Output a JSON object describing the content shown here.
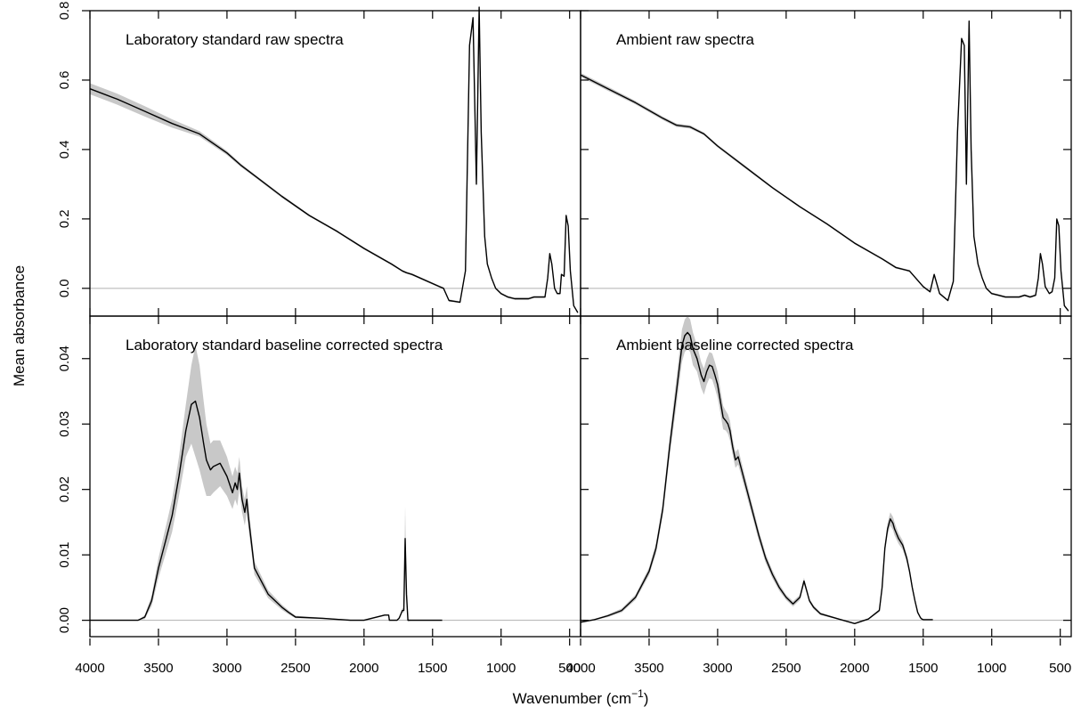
{
  "figure": {
    "xlabel": "Wavenumber (cm",
    "xlabel_sup": "−1",
    "xlabel_end": ")",
    "ylabel": "Mean absorbance"
  },
  "chart_data": [
    {
      "type": "line",
      "title": "Laboratory standard raw spectra",
      "xlim": [
        4000,
        420
      ],
      "ylim": [
        -0.08,
        0.8
      ],
      "xticks": [
        4000,
        3500,
        3000,
        2500,
        2000,
        1500,
        1000,
        500
      ],
      "yticks": [
        0.0,
        0.2,
        0.4,
        0.6,
        0.8
      ],
      "ytick_labels": [
        "0.0",
        "0.2",
        "0.4",
        "0.6",
        "0.8"
      ],
      "zero_line": true,
      "band_color": "#c8c8c8",
      "line_color": "#000000",
      "series": [
        {
          "x": [
            4000,
            3800,
            3600,
            3400,
            3300,
            3200,
            3000,
            2900,
            2800,
            2600,
            2400,
            2200,
            2000,
            1800,
            1720,
            1690,
            1650,
            1450,
            1420,
            1380,
            1300,
            1260,
            1230,
            1205,
            1180,
            1160,
            1145,
            1120,
            1100,
            1070,
            1040,
            1000,
            950,
            900,
            800,
            760,
            720,
            680,
            660,
            645,
            630,
            610,
            590,
            570,
            560,
            540,
            525,
            510,
            495,
            470,
            440
          ],
          "y": [
            0.575,
            0.545,
            0.51,
            0.475,
            0.46,
            0.445,
            0.39,
            0.355,
            0.325,
            0.265,
            0.21,
            0.165,
            0.115,
            0.07,
            0.05,
            0.045,
            0.04,
            0.005,
            0.0,
            -0.035,
            -0.04,
            0.05,
            0.7,
            0.78,
            0.3,
            0.81,
            0.45,
            0.15,
            0.07,
            0.03,
            0.0,
            -0.015,
            -0.025,
            -0.03,
            -0.03,
            -0.025,
            -0.025,
            -0.025,
            0.03,
            0.1,
            0.07,
            0.0,
            -0.015,
            -0.015,
            0.04,
            0.035,
            0.21,
            0.18,
            0.05,
            -0.05,
            -0.07
          ],
          "band": [
            0.016,
            0.016,
            0.015,
            0.012,
            0.01,
            0.008,
            0.006,
            0.005,
            0.004,
            0.004,
            0.003,
            0.003,
            0.003,
            0.003,
            0.003,
            0.003,
            0.003,
            0.003,
            0.003,
            0.003,
            0.003,
            0.003,
            0.004,
            0.004,
            0.004,
            0.004,
            0.004,
            0.003,
            0.003,
            0.003,
            0.003,
            0.003,
            0.003,
            0.003,
            0.003,
            0.003,
            0.003,
            0.003,
            0.003,
            0.003,
            0.003,
            0.003,
            0.003,
            0.003,
            0.003,
            0.003,
            0.003,
            0.003,
            0.003,
            0.003,
            0.003
          ]
        }
      ]
    },
    {
      "type": "line",
      "title": "Ambient raw spectra",
      "xlim": [
        4000,
        420
      ],
      "ylim": [
        -0.08,
        0.8
      ],
      "xticks": [
        4000,
        3500,
        3000,
        2500,
        2000,
        1500,
        1000,
        500
      ],
      "yticks": [
        0.0,
        0.2,
        0.4,
        0.6,
        0.8
      ],
      "ytick_labels": [
        "0.0",
        "0.2",
        "0.4",
        "0.6",
        "0.8"
      ],
      "zero_line": true,
      "band_color": "#c8c8c8",
      "line_color": "#000000",
      "series": [
        {
          "x": [
            4000,
            3800,
            3600,
            3400,
            3300,
            3200,
            3100,
            3000,
            2800,
            2600,
            2400,
            2200,
            2000,
            1800,
            1700,
            1600,
            1500,
            1450,
            1420,
            1380,
            1320,
            1280,
            1250,
            1220,
            1200,
            1185,
            1165,
            1150,
            1130,
            1100,
            1070,
            1040,
            1000,
            950,
            900,
            800,
            760,
            720,
            680,
            660,
            645,
            630,
            610,
            580,
            560,
            540,
            525,
            510,
            495,
            470,
            440
          ],
          "y": [
            0.615,
            0.575,
            0.535,
            0.49,
            0.47,
            0.465,
            0.445,
            0.41,
            0.35,
            0.29,
            0.235,
            0.185,
            0.13,
            0.085,
            0.06,
            0.05,
            0.005,
            -0.01,
            0.04,
            -0.015,
            -0.035,
            0.02,
            0.45,
            0.72,
            0.7,
            0.3,
            0.77,
            0.4,
            0.15,
            0.07,
            0.03,
            0.0,
            -0.015,
            -0.02,
            -0.025,
            -0.025,
            -0.02,
            -0.025,
            -0.02,
            0.03,
            0.1,
            0.07,
            0.005,
            -0.015,
            -0.01,
            0.03,
            0.2,
            0.18,
            0.05,
            -0.05,
            -0.065
          ],
          "band": [
            0.006,
            0.006,
            0.005,
            0.005,
            0.005,
            0.005,
            0.004,
            0.004,
            0.004,
            0.003,
            0.003,
            0.003,
            0.003,
            0.003,
            0.003,
            0.003,
            0.003,
            0.003,
            0.003,
            0.003,
            0.003,
            0.003,
            0.003,
            0.003,
            0.003,
            0.003,
            0.003,
            0.003,
            0.003,
            0.003,
            0.003,
            0.003,
            0.003,
            0.003,
            0.003,
            0.003,
            0.003,
            0.003,
            0.003,
            0.003,
            0.003,
            0.003,
            0.003,
            0.003,
            0.003,
            0.003,
            0.003,
            0.003,
            0.003,
            0.003,
            0.003
          ]
        }
      ]
    },
    {
      "type": "line",
      "title": "Laboratory standard baseline corrected spectra",
      "xlim": [
        4000,
        420
      ],
      "ylim": [
        -0.0025,
        0.0465
      ],
      "xticks": [
        4000,
        3500,
        3000,
        2500,
        2000,
        1500,
        1000,
        500
      ],
      "yticks": [
        0.0,
        0.01,
        0.02,
        0.03,
        0.04
      ],
      "ytick_labels": [
        "0.00",
        "0.01",
        "0.02",
        "0.03",
        "0.04"
      ],
      "zero_line": true,
      "band_color": "#c8c8c8",
      "line_color": "#000000",
      "series": [
        {
          "x": [
            4000,
            3800,
            3650,
            3600,
            3550,
            3500,
            3450,
            3400,
            3350,
            3300,
            3260,
            3230,
            3200,
            3170,
            3150,
            3120,
            3100,
            3050,
            3000,
            2960,
            2940,
            2925,
            2910,
            2890,
            2870,
            2855,
            2845,
            2800,
            2700,
            2600,
            2550,
            2500,
            2300,
            2100,
            2000,
            1850,
            1820,
            1815,
            1760,
            1745,
            1740,
            1720,
            1710,
            1700,
            1690,
            1680,
            1660,
            1430
          ],
          "y": [
            0.0,
            0.0,
            0.0,
            0.0005,
            0.003,
            0.008,
            0.012,
            0.016,
            0.022,
            0.029,
            0.033,
            0.0335,
            0.031,
            0.027,
            0.0245,
            0.023,
            0.0235,
            0.024,
            0.022,
            0.0195,
            0.021,
            0.02,
            0.0225,
            0.0185,
            0.0165,
            0.0185,
            0.016,
            0.008,
            0.004,
            0.002,
            0.0012,
            0.0005,
            0.0003,
            0.0,
            0.0,
            0.0008,
            0.0008,
            0.0,
            0.0,
            0.0003,
            0.0005,
            0.0015,
            0.0015,
            0.0125,
            0.004,
            0.0,
            0.0,
            0.0
          ],
          "band": [
            0.0,
            0.0,
            0.0,
            0.0003,
            0.0008,
            0.0015,
            0.002,
            0.0025,
            0.003,
            0.004,
            0.006,
            0.0085,
            0.008,
            0.0065,
            0.0055,
            0.004,
            0.004,
            0.0035,
            0.003,
            0.0025,
            0.0025,
            0.0025,
            0.0025,
            0.002,
            0.002,
            0.002,
            0.0018,
            0.001,
            0.0006,
            0.0004,
            0.0003,
            0.0002,
            0.0001,
            0.0001,
            0.0001,
            0.0001,
            0.0001,
            0.0001,
            0.0001,
            0.0001,
            0.0002,
            0.0003,
            0.0004,
            0.005,
            0.001,
            0.0002,
            0.0001,
            0.0001
          ]
        }
      ]
    },
    {
      "type": "line",
      "title": "Ambient baseline corrected spectra",
      "xlim": [
        4000,
        420
      ],
      "ylim": [
        -0.0025,
        0.0465
      ],
      "xticks": [
        4000,
        3500,
        3000,
        2500,
        2000,
        1500,
        1000,
        500
      ],
      "yticks": [
        0.0,
        0.01,
        0.02,
        0.03,
        0.04
      ],
      "ytick_labels": [
        "0.00",
        "0.01",
        "0.02",
        "0.03",
        "0.04"
      ],
      "zero_line": true,
      "band_color": "#c8c8c8",
      "line_color": "#000000",
      "series": [
        {
          "x": [
            4000,
            3900,
            3800,
            3700,
            3600,
            3500,
            3450,
            3400,
            3350,
            3300,
            3260,
            3240,
            3220,
            3200,
            3180,
            3150,
            3120,
            3100,
            3080,
            3060,
            3040,
            3020,
            3000,
            2980,
            2960,
            2940,
            2925,
            2910,
            2890,
            2870,
            2850,
            2800,
            2750,
            2700,
            2650,
            2600,
            2550,
            2500,
            2450,
            2400,
            2370,
            2350,
            2330,
            2300,
            2250,
            2100,
            2000,
            1900,
            1820,
            1800,
            1780,
            1760,
            1740,
            1720,
            1710,
            1700,
            1680,
            1650,
            1620,
            1600,
            1580,
            1560,
            1540,
            1520,
            1510,
            1500,
            1480,
            1430
          ],
          "y": [
            -0.0003,
            0.0001,
            0.0007,
            0.0015,
            0.0035,
            0.0075,
            0.011,
            0.017,
            0.0265,
            0.035,
            0.042,
            0.0435,
            0.044,
            0.0435,
            0.0415,
            0.04,
            0.0375,
            0.0365,
            0.038,
            0.039,
            0.0388,
            0.0375,
            0.036,
            0.0335,
            0.031,
            0.0305,
            0.03,
            0.029,
            0.0265,
            0.0245,
            0.025,
            0.021,
            0.017,
            0.013,
            0.0095,
            0.007,
            0.005,
            0.0035,
            0.0025,
            0.0035,
            0.006,
            0.0045,
            0.003,
            0.002,
            0.001,
            0.0001,
            -0.0005,
            0.0002,
            0.0015,
            0.005,
            0.011,
            0.014,
            0.0155,
            0.0148,
            0.014,
            0.0135,
            0.0125,
            0.0115,
            0.0095,
            0.0075,
            0.005,
            0.003,
            0.0012,
            0.0004,
            0.0002,
            0.0001,
            0.0001,
            0.0001
          ],
          "band": [
            0.0001,
            0.0001,
            0.0002,
            0.0003,
            0.0004,
            0.0006,
            0.0008,
            0.001,
            0.0015,
            0.002,
            0.0025,
            0.0025,
            0.0025,
            0.0025,
            0.0025,
            0.002,
            0.002,
            0.002,
            0.002,
            0.002,
            0.002,
            0.002,
            0.002,
            0.0018,
            0.0018,
            0.0015,
            0.0015,
            0.0015,
            0.0012,
            0.0012,
            0.0012,
            0.001,
            0.0009,
            0.0008,
            0.0007,
            0.0006,
            0.0005,
            0.0004,
            0.0004,
            0.0004,
            0.0005,
            0.0004,
            0.0003,
            0.0003,
            0.0002,
            0.0001,
            0.0001,
            0.0001,
            0.0002,
            0.0004,
            0.0007,
            0.0009,
            0.001,
            0.001,
            0.001,
            0.0009,
            0.0008,
            0.0007,
            0.0006,
            0.0005,
            0.0004,
            0.0003,
            0.0002,
            0.0001,
            0.0001,
            0.0001,
            0.0001,
            0.0001
          ]
        }
      ]
    }
  ]
}
